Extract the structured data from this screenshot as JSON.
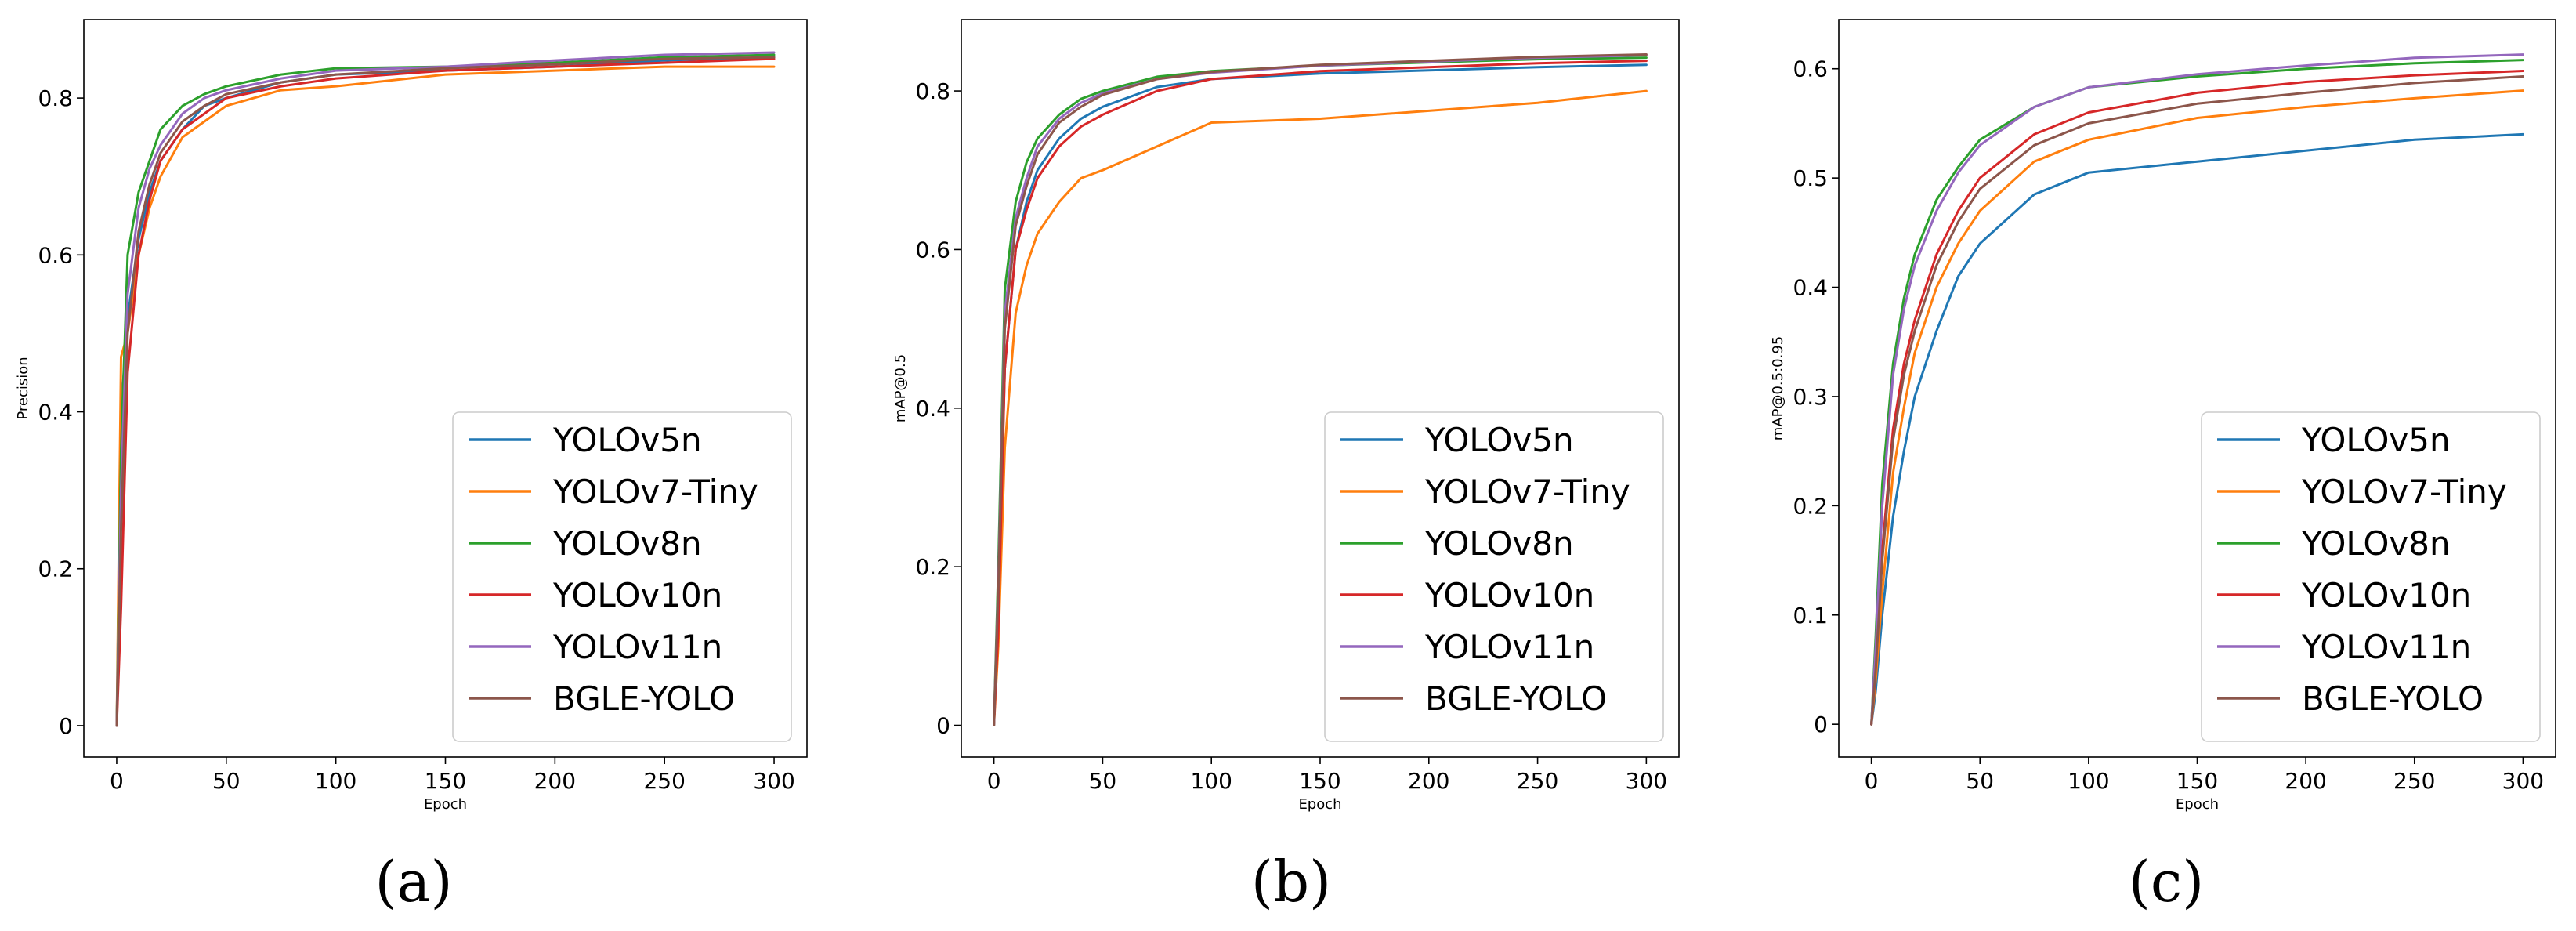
{
  "figure": {
    "panel_labels": [
      "(a)",
      "(b)",
      "(c)"
    ]
  },
  "series_colors": {
    "YOLOv5n": "#1f77b4",
    "YOLOv7-Tiny": "#ff7f0e",
    "YOLOv8n": "#2ca02c",
    "YOLOv10n": "#d62728",
    "YOLOv11n": "#9467bd",
    "BGLE-YOLO": "#8c564b"
  },
  "chart_data": [
    {
      "type": "line",
      "panel": "(a)",
      "title": "",
      "xlabel": "Epoch",
      "ylabel": "Precision",
      "xlim": [
        -15,
        315
      ],
      "ylim": [
        -0.04,
        0.9
      ],
      "xticks": [
        0,
        50,
        100,
        150,
        200,
        250,
        300
      ],
      "yticks": [
        0.0,
        0.2,
        0.4,
        0.6,
        0.8
      ],
      "grid": false,
      "legend_position": "lower-right",
      "series": [
        {
          "name": "YOLOv5n",
          "x": [
            0,
            2,
            5,
            10,
            15,
            20,
            30,
            40,
            50,
            75,
            100,
            150,
            200,
            250,
            300
          ],
          "values": [
            0.0,
            0.4,
            0.52,
            0.62,
            0.68,
            0.72,
            0.76,
            0.79,
            0.8,
            0.82,
            0.83,
            0.835,
            0.84,
            0.848,
            0.852
          ]
        },
        {
          "name": "YOLOv7-Tiny",
          "x": [
            0,
            2,
            5,
            10,
            15,
            20,
            30,
            40,
            50,
            75,
            100,
            150,
            200,
            250,
            300
          ],
          "values": [
            0.0,
            0.47,
            0.5,
            0.6,
            0.66,
            0.7,
            0.75,
            0.77,
            0.79,
            0.81,
            0.815,
            0.83,
            0.835,
            0.84,
            0.84
          ]
        },
        {
          "name": "YOLOv8n",
          "x": [
            0,
            2,
            5,
            10,
            15,
            20,
            30,
            40,
            50,
            75,
            100,
            150,
            200,
            250,
            300
          ],
          "values": [
            0.0,
            0.35,
            0.6,
            0.68,
            0.72,
            0.76,
            0.79,
            0.805,
            0.815,
            0.83,
            0.838,
            0.84,
            0.845,
            0.852,
            0.855
          ]
        },
        {
          "name": "YOLOv10n",
          "x": [
            0,
            2,
            5,
            10,
            15,
            20,
            30,
            40,
            50,
            75,
            100,
            150,
            200,
            250,
            300
          ],
          "values": [
            0.0,
            0.15,
            0.45,
            0.6,
            0.67,
            0.72,
            0.76,
            0.78,
            0.8,
            0.815,
            0.825,
            0.835,
            0.84,
            0.845,
            0.85
          ]
        },
        {
          "name": "YOLOv11n",
          "x": [
            0,
            2,
            5,
            10,
            15,
            20,
            30,
            40,
            50,
            75,
            100,
            150,
            200,
            250,
            300
          ],
          "values": [
            0.0,
            0.3,
            0.55,
            0.66,
            0.71,
            0.74,
            0.78,
            0.8,
            0.81,
            0.825,
            0.835,
            0.84,
            0.848,
            0.855,
            0.858
          ]
        },
        {
          "name": "BGLE-YOLO",
          "x": [
            0,
            2,
            5,
            10,
            15,
            20,
            30,
            40,
            50,
            75,
            100,
            150,
            200,
            250,
            300
          ],
          "values": [
            0.0,
            0.25,
            0.5,
            0.63,
            0.69,
            0.73,
            0.77,
            0.79,
            0.805,
            0.82,
            0.83,
            0.838,
            0.843,
            0.85,
            0.852
          ]
        }
      ]
    },
    {
      "type": "line",
      "panel": "(b)",
      "title": "",
      "xlabel": "Epoch",
      "ylabel": "mAP@0.5",
      "xlim": [
        -15,
        315
      ],
      "ylim": [
        -0.04,
        0.89
      ],
      "xticks": [
        0,
        50,
        100,
        150,
        200,
        250,
        300
      ],
      "yticks": [
        0.0,
        0.2,
        0.4,
        0.6,
        0.8
      ],
      "grid": false,
      "legend_position": "lower-right",
      "series": [
        {
          "name": "YOLOv5n",
          "x": [
            0,
            2,
            5,
            10,
            15,
            20,
            30,
            40,
            50,
            75,
            100,
            150,
            200,
            250,
            300
          ],
          "values": [
            0.0,
            0.15,
            0.45,
            0.6,
            0.66,
            0.7,
            0.74,
            0.765,
            0.78,
            0.805,
            0.815,
            0.822,
            0.826,
            0.83,
            0.833
          ]
        },
        {
          "name": "YOLOv7-Tiny",
          "x": [
            0,
            2,
            5,
            10,
            15,
            20,
            30,
            40,
            50,
            75,
            100,
            150,
            200,
            250,
            300
          ],
          "values": [
            0.0,
            0.1,
            0.35,
            0.52,
            0.58,
            0.62,
            0.66,
            0.69,
            0.7,
            0.73,
            0.76,
            0.765,
            0.775,
            0.785,
            0.8
          ]
        },
        {
          "name": "YOLOv8n",
          "x": [
            0,
            2,
            5,
            10,
            15,
            20,
            30,
            40,
            50,
            75,
            100,
            150,
            200,
            250,
            300
          ],
          "values": [
            0.0,
            0.2,
            0.55,
            0.66,
            0.71,
            0.74,
            0.77,
            0.79,
            0.8,
            0.818,
            0.825,
            0.832,
            0.836,
            0.84,
            0.842
          ]
        },
        {
          "name": "YOLOv10n",
          "x": [
            0,
            2,
            5,
            10,
            15,
            20,
            30,
            40,
            50,
            75,
            100,
            150,
            200,
            250,
            300
          ],
          "values": [
            0.0,
            0.12,
            0.45,
            0.6,
            0.65,
            0.69,
            0.73,
            0.755,
            0.77,
            0.8,
            0.815,
            0.825,
            0.83,
            0.835,
            0.838
          ]
        },
        {
          "name": "YOLOv11n",
          "x": [
            0,
            2,
            5,
            10,
            15,
            20,
            30,
            40,
            50,
            75,
            100,
            150,
            200,
            250,
            300
          ],
          "values": [
            0.0,
            0.18,
            0.52,
            0.64,
            0.69,
            0.73,
            0.765,
            0.785,
            0.797,
            0.815,
            0.823,
            0.832,
            0.837,
            0.842,
            0.845
          ]
        },
        {
          "name": "BGLE-YOLO",
          "x": [
            0,
            2,
            5,
            10,
            15,
            20,
            30,
            40,
            50,
            75,
            100,
            150,
            200,
            250,
            300
          ],
          "values": [
            0.0,
            0.17,
            0.5,
            0.63,
            0.68,
            0.72,
            0.76,
            0.78,
            0.795,
            0.815,
            0.824,
            0.833,
            0.838,
            0.843,
            0.846
          ]
        }
      ]
    },
    {
      "type": "line",
      "panel": "(c)",
      "title": "",
      "xlabel": "Epoch",
      "ylabel": "mAP@0.5:0.95",
      "xlim": [
        -15,
        315
      ],
      "ylim": [
        -0.03,
        0.645
      ],
      "xticks": [
        0,
        50,
        100,
        150,
        200,
        250,
        300
      ],
      "yticks": [
        0.0,
        0.1,
        0.2,
        0.3,
        0.4,
        0.5,
        0.6
      ],
      "grid": false,
      "legend_position": "lower-right",
      "series": [
        {
          "name": "YOLOv5n",
          "x": [
            0,
            2,
            5,
            10,
            15,
            20,
            30,
            40,
            50,
            75,
            100,
            150,
            200,
            250,
            300
          ],
          "values": [
            0.0,
            0.03,
            0.1,
            0.19,
            0.25,
            0.3,
            0.36,
            0.41,
            0.44,
            0.485,
            0.505,
            0.515,
            0.525,
            0.535,
            0.54
          ]
        },
        {
          "name": "YOLOv7-Tiny",
          "x": [
            0,
            2,
            5,
            10,
            15,
            20,
            30,
            40,
            50,
            75,
            100,
            150,
            200,
            250,
            300
          ],
          "values": [
            0.0,
            0.04,
            0.12,
            0.23,
            0.29,
            0.34,
            0.4,
            0.44,
            0.47,
            0.515,
            0.535,
            0.555,
            0.565,
            0.573,
            0.58
          ]
        },
        {
          "name": "YOLOv8n",
          "x": [
            0,
            2,
            5,
            10,
            15,
            20,
            30,
            40,
            50,
            75,
            100,
            150,
            200,
            250,
            300
          ],
          "values": [
            0.0,
            0.08,
            0.22,
            0.33,
            0.39,
            0.43,
            0.48,
            0.51,
            0.535,
            0.565,
            0.583,
            0.593,
            0.6,
            0.605,
            0.608
          ]
        },
        {
          "name": "YOLOv10n",
          "x": [
            0,
            2,
            5,
            10,
            15,
            20,
            30,
            40,
            50,
            75,
            100,
            150,
            200,
            250,
            300
          ],
          "values": [
            0.0,
            0.05,
            0.16,
            0.27,
            0.33,
            0.37,
            0.43,
            0.47,
            0.5,
            0.54,
            0.56,
            0.578,
            0.588,
            0.594,
            0.598
          ]
        },
        {
          "name": "YOLOv11n",
          "x": [
            0,
            2,
            5,
            10,
            15,
            20,
            30,
            40,
            50,
            75,
            100,
            150,
            200,
            250,
            300
          ],
          "values": [
            0.0,
            0.07,
            0.2,
            0.32,
            0.38,
            0.42,
            0.47,
            0.505,
            0.53,
            0.565,
            0.583,
            0.595,
            0.603,
            0.61,
            0.613
          ]
        },
        {
          "name": "BGLE-YOLO",
          "x": [
            0,
            2,
            5,
            10,
            15,
            20,
            30,
            40,
            50,
            75,
            100,
            150,
            200,
            250,
            300
          ],
          "values": [
            0.0,
            0.05,
            0.15,
            0.26,
            0.32,
            0.36,
            0.42,
            0.46,
            0.49,
            0.53,
            0.55,
            0.568,
            0.578,
            0.587,
            0.593
          ]
        }
      ]
    }
  ]
}
